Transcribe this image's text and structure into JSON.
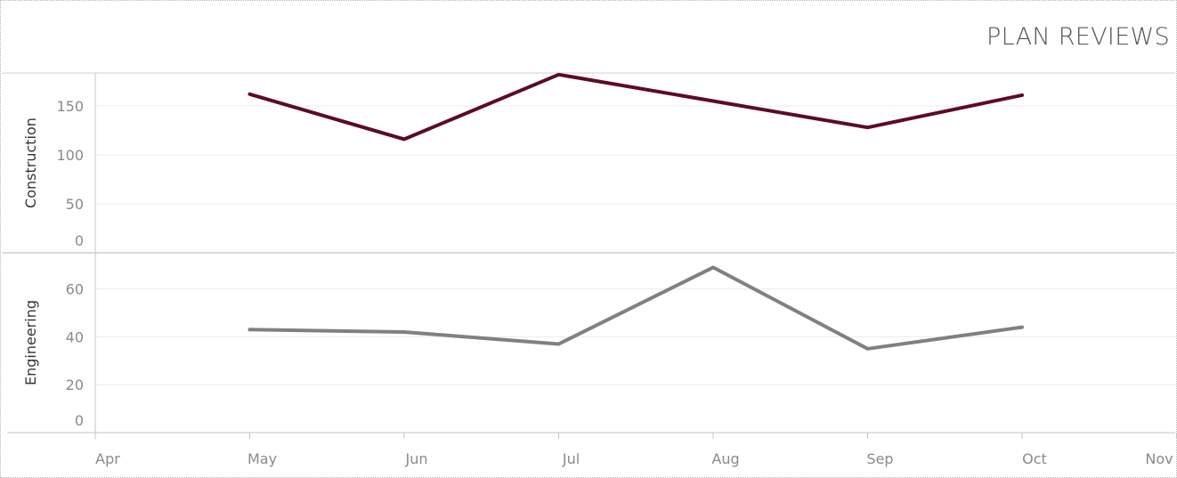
{
  "title": "PLAN REVIEWS",
  "chart_data": {
    "type": "line",
    "x_categories": [
      "Apr",
      "May",
      "Jun",
      "Jul",
      "Aug",
      "Sep",
      "Oct",
      "Nov"
    ],
    "grid": true,
    "panels": [
      {
        "name": "Construction",
        "color": "#5e0b22",
        "ylim": [
          0,
          190
        ],
        "yticks": [
          0,
          50,
          100,
          150
        ],
        "points": [
          {
            "x": "May",
            "y": 162
          },
          {
            "x": "Jun",
            "y": 116
          },
          {
            "x": "Jul",
            "y": 182
          },
          {
            "x": "Aug",
            "y": 155
          },
          {
            "x": "Sep",
            "y": 128
          },
          {
            "x": "Oct",
            "y": 161
          }
        ]
      },
      {
        "name": "Engineering",
        "color": "#808080",
        "ylim": [
          0,
          71
        ],
        "yticks": [
          0,
          20,
          40,
          60
        ],
        "points": [
          {
            "x": "May",
            "y": 43
          },
          {
            "x": "Jun",
            "y": 42
          },
          {
            "x": "Jul",
            "y": 37
          },
          {
            "x": "Aug",
            "y": 69
          },
          {
            "x": "Sep",
            "y": 35
          },
          {
            "x": "Oct",
            "y": 44
          }
        ]
      }
    ]
  }
}
